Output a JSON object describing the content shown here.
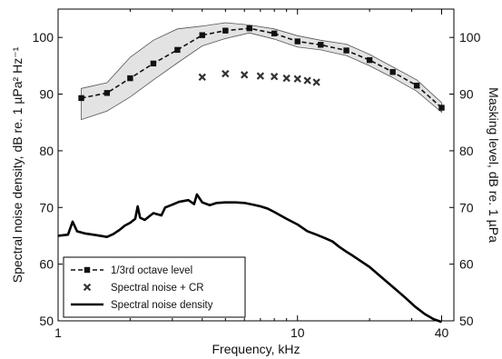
{
  "chart_data": {
    "type": "line",
    "title": "",
    "xlabel": "Frequency, kHz",
    "ylabel_left": "Spectral noise density, dB re. 1 µPa² Hz⁻¹",
    "ylabel_right": "Masking level, dB re. 1 µPa",
    "x_scale": "log",
    "xlim": [
      1,
      45
    ],
    "x_ticks": [
      1,
      10,
      40
    ],
    "x_tick_labels": [
      "1",
      "10",
      "40"
    ],
    "ylim": [
      50,
      105
    ],
    "y_ticks": [
      50,
      60,
      70,
      80,
      90,
      100
    ],
    "y_tick_labels": [
      "50",
      "60",
      "70",
      "80",
      "90",
      "100"
    ],
    "grid": false,
    "legend_position": "bottom-left",
    "series": [
      {
        "name": "1/3rd octave level",
        "style": "dashed-line-square-markers",
        "color": "#111111",
        "x": [
          1.25,
          1.6,
          2.0,
          2.5,
          3.15,
          4.0,
          5.0,
          6.3,
          8.0,
          10.0,
          12.5,
          16.0,
          20.0,
          25.0,
          31.5,
          40.0
        ],
        "y": [
          89.3,
          90.2,
          92.8,
          95.4,
          97.8,
          100.4,
          101.2,
          101.6,
          100.7,
          99.3,
          98.7,
          97.7,
          96.0,
          93.9,
          91.5,
          87.6
        ],
        "band_upper": [
          91.0,
          92.0,
          96.5,
          99.5,
          101.5,
          102.0,
          102.6,
          102.2,
          101.5,
          100.3,
          99.5,
          98.8,
          97.0,
          94.8,
          92.5,
          88.5
        ],
        "band_lower": [
          85.5,
          87.0,
          89.5,
          92.5,
          95.5,
          98.5,
          99.8,
          100.8,
          99.7,
          98.3,
          97.8,
          96.8,
          95.0,
          92.9,
          90.5,
          86.8
        ]
      },
      {
        "name": "Spectral noise + CR",
        "style": "x-markers",
        "color": "#333333",
        "x": [
          4.0,
          5.0,
          6.0,
          7.0,
          8.0,
          9.0,
          10.0,
          11.0,
          12.0
        ],
        "y": [
          93.0,
          93.6,
          93.4,
          93.2,
          93.1,
          92.8,
          92.7,
          92.4,
          92.1
        ]
      },
      {
        "name": "Spectral noise density",
        "style": "thick-solid-line",
        "color": "#000000",
        "x": [
          1.0,
          1.1,
          1.15,
          1.2,
          1.3,
          1.4,
          1.5,
          1.6,
          1.7,
          1.8,
          1.9,
          2.0,
          2.1,
          2.15,
          2.2,
          2.3,
          2.5,
          2.7,
          2.8,
          3.0,
          3.2,
          3.5,
          3.7,
          3.8,
          4.0,
          4.3,
          4.6,
          5.0,
          5.5,
          6.0,
          6.5,
          7.0,
          7.5,
          8.0,
          9.0,
          10.0,
          11.0,
          12.0,
          13.0,
          14.0,
          15.0,
          16.0,
          17.0,
          18.0,
          20.0,
          22.0,
          25.0,
          28.0,
          31.0,
          34.0,
          37.0,
          40.0
        ],
        "y": [
          65.0,
          65.2,
          67.5,
          65.8,
          65.4,
          65.2,
          65.0,
          64.8,
          65.3,
          66.0,
          66.8,
          67.3,
          68.0,
          70.2,
          68.2,
          67.8,
          69.0,
          68.6,
          70.0,
          70.5,
          71.0,
          71.3,
          70.6,
          72.3,
          70.9,
          70.4,
          70.8,
          70.9,
          70.9,
          70.8,
          70.5,
          70.2,
          69.8,
          69.2,
          68.0,
          67.0,
          65.8,
          65.2,
          64.6,
          64.0,
          63.0,
          62.2,
          61.5,
          60.8,
          59.5,
          58.0,
          56.0,
          54.2,
          52.5,
          51.2,
          50.3,
          49.8
        ]
      }
    ]
  }
}
